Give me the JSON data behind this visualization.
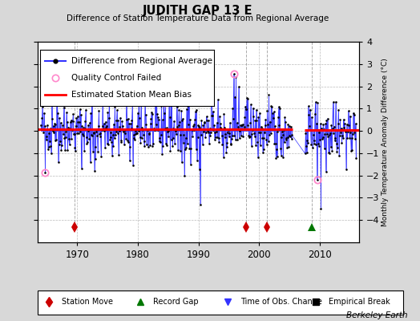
{
  "title": "JUDITH GAP 13 E",
  "subtitle": "Difference of Station Temperature Data from Regional Average",
  "ylabel_right": "Monthly Temperature Anomaly Difference (°C)",
  "credit": "Berkeley Earth",
  "xlim": [
    1963.5,
    2016.5
  ],
  "ylim": [
    -5,
    4
  ],
  "yticks": [
    -4,
    -3,
    -2,
    -1,
    0,
    1,
    2,
    3,
    4
  ],
  "xticks": [
    1970,
    1980,
    1990,
    2000,
    2010
  ],
  "bias_y1": 0.08,
  "bias_y2": 0.05,
  "bias_x1_end": 2005.5,
  "bias_x2_start": 2007.5,
  "gap_start": 2005.5,
  "gap_end": 2007.5,
  "station_moves": [
    1969.5,
    1997.9,
    2001.3
  ],
  "record_gaps": [
    2008.7
  ],
  "marker_y": -4.3,
  "bg_color": "#d8d8d8",
  "plot_bg_color": "#ffffff",
  "line_color": "#3333ff",
  "marker_color": "#000000",
  "bias_color": "#ff0000",
  "qc_color": "#ff88cc",
  "station_move_color": "#cc0000",
  "record_gap_color": "#007700",
  "time_obs_color": "#3333ff",
  "grid_color": "#bbbbbb",
  "seed": 42,
  "n_months": 576,
  "t_start": 1964.0,
  "t_end": 2016.0
}
